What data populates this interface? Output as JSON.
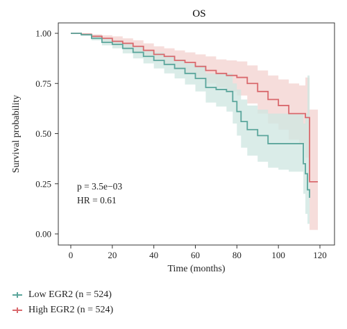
{
  "chart_data": {
    "type": "line",
    "title": "OS",
    "xlabel": "Time (months)",
    "ylabel": "Survival probability",
    "xlim": [
      0,
      120
    ],
    "ylim": [
      0,
      1
    ],
    "x_ticks": [
      0,
      20,
      40,
      60,
      80,
      100,
      120
    ],
    "y_ticks": [
      "0.00",
      "0.25",
      "0.50",
      "0.75",
      "1.00"
    ],
    "grid": false,
    "legend_position": "bottom-left",
    "annotations": {
      "p_value": "p = 3.5e−03",
      "hazard_ratio": "HR = 0.61"
    },
    "series": [
      {
        "name": "Low EGR2 (n = 524)",
        "color": "#5aa59b",
        "band_color": "#cfe7e2",
        "x": [
          0,
          5,
          10,
          15,
          20,
          25,
          30,
          35,
          40,
          45,
          50,
          55,
          60,
          65,
          70,
          75,
          78,
          80,
          82,
          85,
          90,
          95,
          100,
          105,
          110,
          112,
          113,
          114,
          115
        ],
        "y": [
          1.0,
          0.993,
          0.975,
          0.955,
          0.945,
          0.925,
          0.905,
          0.885,
          0.865,
          0.845,
          0.825,
          0.8,
          0.775,
          0.73,
          0.72,
          0.71,
          0.66,
          0.61,
          0.56,
          0.52,
          0.49,
          0.45,
          0.45,
          0.45,
          0.45,
          0.35,
          0.3,
          0.22,
          0.18
        ],
        "lower": [
          1.0,
          0.987,
          0.965,
          0.94,
          0.925,
          0.9,
          0.875,
          0.85,
          0.825,
          0.8,
          0.775,
          0.745,
          0.71,
          0.655,
          0.635,
          0.61,
          0.55,
          0.49,
          0.43,
          0.39,
          0.36,
          0.33,
          0.32,
          0.31,
          0.31,
          0.2,
          0.1,
          0.05,
          0.05
        ],
        "upper": [
          1.0,
          0.999,
          0.99,
          0.975,
          0.965,
          0.95,
          0.935,
          0.915,
          0.905,
          0.89,
          0.87,
          0.85,
          0.84,
          0.8,
          0.8,
          0.8,
          0.75,
          0.72,
          0.67,
          0.64,
          0.62,
          0.6,
          0.6,
          0.6,
          0.6,
          0.55,
          0.6,
          0.79,
          0.79
        ]
      },
      {
        "name": "High EGR2 (n = 524)",
        "color": "#d9686c",
        "band_color": "#f3d3d1",
        "x": [
          0,
          5,
          10,
          15,
          20,
          25,
          30,
          35,
          40,
          45,
          50,
          55,
          60,
          65,
          70,
          75,
          80,
          85,
          90,
          95,
          100,
          105,
          110,
          113,
          115,
          117,
          119
        ],
        "y": [
          1.0,
          0.995,
          0.985,
          0.975,
          0.96,
          0.95,
          0.935,
          0.915,
          0.895,
          0.885,
          0.865,
          0.855,
          0.835,
          0.815,
          0.8,
          0.79,
          0.78,
          0.75,
          0.71,
          0.67,
          0.64,
          0.6,
          0.6,
          0.58,
          0.26,
          0.26,
          0.26
        ],
        "lower": [
          1.0,
          0.99,
          0.975,
          0.96,
          0.94,
          0.925,
          0.905,
          0.885,
          0.86,
          0.845,
          0.82,
          0.8,
          0.775,
          0.75,
          0.73,
          0.71,
          0.69,
          0.65,
          0.6,
          0.55,
          0.52,
          0.47,
          0.45,
          0.38,
          0.02,
          0.02,
          0.02
        ],
        "upper": [
          1.0,
          0.999,
          0.995,
          0.99,
          0.985,
          0.975,
          0.965,
          0.95,
          0.935,
          0.925,
          0.915,
          0.905,
          0.895,
          0.885,
          0.87,
          0.865,
          0.86,
          0.84,
          0.815,
          0.79,
          0.77,
          0.75,
          0.74,
          0.78,
          0.62,
          0.62,
          0.62
        ]
      }
    ]
  }
}
